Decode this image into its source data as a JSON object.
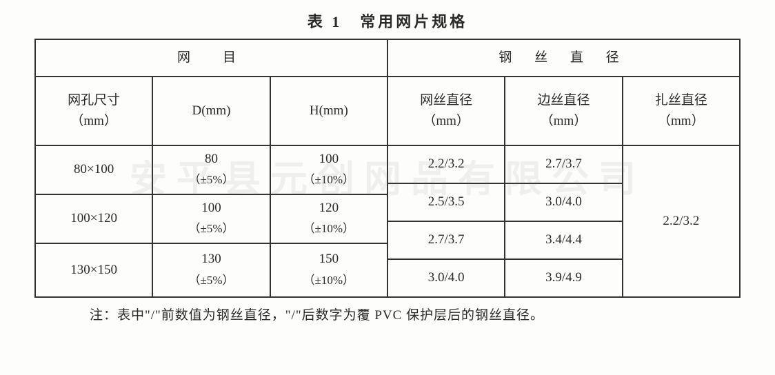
{
  "title": "表 1　常用网片规格",
  "watermark": "安平县元创网品有限公司",
  "groupHeaders": {
    "left": "网　目",
    "right": "钢 丝 直 径"
  },
  "columns": {
    "c0": "网孔尺寸\n（mm）",
    "c1": "D(mm)",
    "c2": "H(mm)",
    "c3": "网丝直径\n（mm）",
    "c4": "边丝直径\n（mm）",
    "c5": "扎丝直径\n（mm）"
  },
  "rows": {
    "r0": {
      "mesh": "80×100",
      "d_main": "80",
      "d_tol": "（±5%）",
      "h_main": "100",
      "h_tol": "（±10%）"
    },
    "r1": {
      "mesh": "100×120",
      "d_main": "100",
      "d_tol": "（±5%）",
      "h_main": "120",
      "h_tol": "（±10%）"
    },
    "r2": {
      "mesh": "130×150",
      "d_main": "130",
      "d_tol": "（±5%）",
      "h_main": "150",
      "h_tol": "（±10%）"
    }
  },
  "wire": {
    "net": [
      "2.2/3.2",
      "2.5/3.5",
      "2.7/3.7",
      "3.0/4.0"
    ],
    "edge": [
      "2.7/3.7",
      "3.0/4.0",
      "3.4/4.4",
      "3.9/4.9"
    ],
    "tie": "2.2/3.2"
  },
  "note": "注：表中\"/\"前数值为钢丝直径，\"/\"后数字为覆 PVC 保护层后的钢丝直径。"
}
